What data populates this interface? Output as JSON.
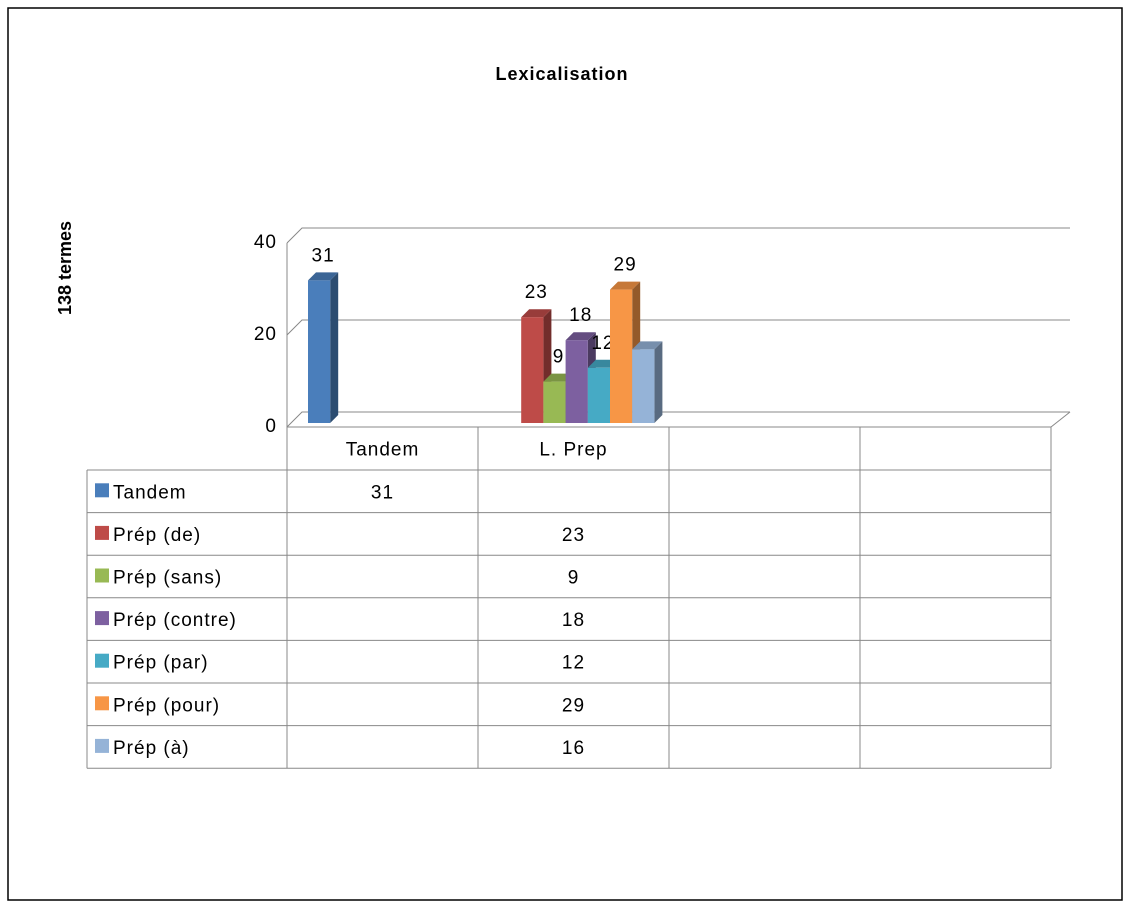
{
  "chart_data": {
    "type": "bar3d_table",
    "title": "Lexicalisation",
    "ylabel": "138 termes",
    "categories": [
      "Tandem",
      "L. Prep",
      null,
      null
    ],
    "series": [
      {
        "name": "Tandem",
        "color": "#4a7ebb",
        "values": [
          31,
          null,
          null,
          null
        ]
      },
      {
        "name": "Prép (de)",
        "color": "#be4b48",
        "values": [
          null,
          23,
          null,
          null
        ]
      },
      {
        "name": "Prép (sans)",
        "color": "#98b954",
        "values": [
          null,
          9,
          null,
          null
        ]
      },
      {
        "name": "Prép (contre)",
        "color": "#7d60a0",
        "values": [
          null,
          18,
          null,
          null
        ]
      },
      {
        "name": "Prép (par)",
        "color": "#46aac5",
        "values": [
          null,
          12,
          null,
          null
        ]
      },
      {
        "name": "Prép (pour)",
        "color": "#f79646",
        "values": [
          null,
          29,
          null,
          null
        ]
      },
      {
        "name": "Prép (à)",
        "color": "#95b3d7",
        "values": [
          null,
          16,
          null,
          null
        ],
        "data_labels": false
      }
    ],
    "ylim": [
      0,
      40
    ],
    "yticks": [
      0,
      20,
      40
    ],
    "grid": true
  }
}
